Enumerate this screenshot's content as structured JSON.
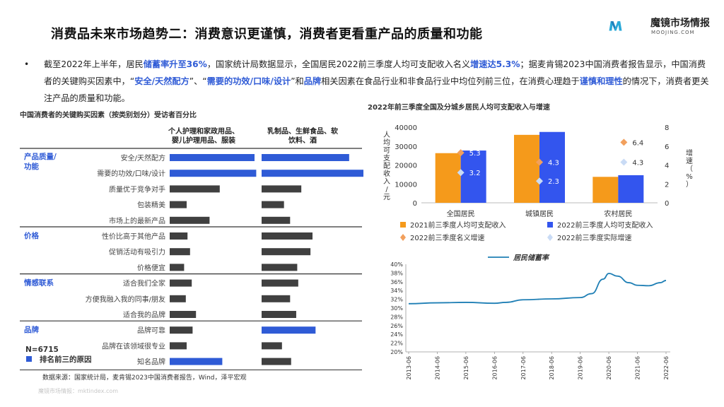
{
  "page": {
    "title": "消费品未来市场趋势二：消费意识更谨慎，消费者更看重产品的质量和功能",
    "logo_name": "魔镜市场情报",
    "logo_sub": "MOOJING.COM",
    "bullet": "•",
    "paragraph": [
      {
        "t": "截至2022年上半年，居民"
      },
      {
        "t": "储蓄率升至36%",
        "h": true
      },
      {
        "t": "，国家统计局数据显示，全国居民2022前三季度人均可支配收入名义"
      },
      {
        "t": "增速达5.3%",
        "h": true
      },
      {
        "t": "；据麦肯锡2023中国消费者报告显示，中国消费者的关键购买因素中，“"
      },
      {
        "t": "安全/天然配方",
        "h": true
      },
      {
        "t": "”、“"
      },
      {
        "t": "需要的功效/口味/设计",
        "h": true
      },
      {
        "t": "”和"
      },
      {
        "t": "品牌",
        "h": true
      },
      {
        "t": "相关因素在食品行业和非食品行业中均位列前三位，在消费心理趋于"
      },
      {
        "t": "谨慎和理性",
        "h": true
      },
      {
        "t": "的情况下，消费者更关注产品的质量和功能。"
      }
    ],
    "footnote": "数据来源：国家统计局，麦肯锡2023中国消费者报告，Wind，泽平宏观",
    "watermark": "魔镜市场情报：mktindex.com"
  },
  "colors": {
    "accent_blue": "#2f5bd6",
    "bar_gray": "#404040",
    "orange": "#f59a1b",
    "blue": "#3355ee",
    "line_teal": "#1f7fb5",
    "diamond_orange": "#f2a05d",
    "diamond_light": "#c9dbf5"
  },
  "factors": {
    "title": "中国消费者的关键购买因素（按类别划分）受访者百分比",
    "col1_header": [
      "个人护理和家政用品、",
      "婴儿护理用品、服装"
    ],
    "col2_header": [
      "乳制品、生鲜食品、软",
      "饮料、酒"
    ],
    "n_label": "N=6715",
    "legend_label": "排名前三的原因",
    "groups": [
      {
        "label": [
          "产品质量/",
          "功能"
        ],
        "rows": [
          0,
          4
        ]
      },
      {
        "label": [
          "价格"
        ],
        "rows": [
          5,
          7
        ]
      },
      {
        "label": [
          "情感联系"
        ],
        "rows": [
          8,
          10
        ]
      },
      {
        "label": [
          "品牌"
        ],
        "rows": [
          11,
          13
        ]
      }
    ],
    "rows": [
      {
        "label": "安全/天然配方",
        "v1": 1.0,
        "t1": true,
        "v2": 0.86,
        "t2": true
      },
      {
        "label": "需要的功效/口味/设计",
        "v1": 1.02,
        "t1": true,
        "v2": 1.0,
        "t2": true
      },
      {
        "label": "质量优于竞争对手",
        "v1": 0.59,
        "t1": false,
        "v2": 0.39,
        "t2": false
      },
      {
        "label": "包装精美",
        "v1": 0.2,
        "t1": false,
        "v2": 0.22,
        "t2": false
      },
      {
        "label": "市场上的最新产品",
        "v1": 0.47,
        "t1": false,
        "v2": 0.28,
        "t2": false
      },
      {
        "label": "性价比高于其他产品",
        "v1": 0.21,
        "t1": false,
        "v2": 0.5,
        "t2": false
      },
      {
        "label": "促销活动有吸引力",
        "v1": 0.24,
        "t1": false,
        "v2": 0.48,
        "t2": false
      },
      {
        "label": "价格便宜",
        "v1": 0.17,
        "t1": false,
        "v2": 0.35,
        "t2": false
      },
      {
        "label": "适合我们全家",
        "v1": 0.26,
        "t1": false,
        "v2": 0.36,
        "t2": false
      },
      {
        "label": "方便我融入我的同事/朋友",
        "v1": 0.19,
        "t1": false,
        "v2": 0.28,
        "t2": false
      },
      {
        "label": "适合我的品牌",
        "v1": 0.31,
        "t1": false,
        "v2": 0.34,
        "t2": false
      },
      {
        "label": "品牌可靠",
        "v1": 0.27,
        "t1": false,
        "v2": 0.53,
        "t2": true
      },
      {
        "label": "品牌在该领域很专业",
        "v1": 0.2,
        "t1": false,
        "v2": 0.2,
        "t2": false
      },
      {
        "label": "知名品牌",
        "v1": 0.62,
        "t1": true,
        "v2": 0.29,
        "t2": false
      }
    ]
  },
  "chart_data": [
    {
      "type": "bar",
      "title": "2022年前三季度全国及分城乡居民人均可支配收入与增速",
      "categories": [
        "全国居民",
        "城镇居民",
        "农村居民"
      ],
      "series": [
        {
          "name": "2021前三季度人均可支配收入",
          "values": [
            26265,
            35946,
            13726
          ],
          "color": "#f59a1b"
        },
        {
          "name": "2022前三季度人均可支配收入",
          "values": [
            27650,
            37482,
            14600
          ],
          "color": "#3355ee"
        }
      ],
      "scatter_series": [
        {
          "name": "2022前三季度名义增速",
          "values": [
            5.3,
            4.3,
            6.4
          ],
          "labels": [
            "5.3",
            "4.3",
            "6.4"
          ],
          "color": "#f2a05d"
        },
        {
          "name": "2022前三季度实际增速",
          "values": [
            3.2,
            2.3,
            4.3
          ],
          "labels": [
            "3.2",
            "2.3",
            "4.3"
          ],
          "color": "#c9dbf5"
        }
      ],
      "ylabel": "人均可支配收入/元",
      "y2label": "增速（%）",
      "ylim": [
        0,
        40000
      ],
      "yticks": [
        "0",
        "10000",
        "20000",
        "30000",
        "40000"
      ],
      "y2lim": [
        0,
        8
      ],
      "y2ticks": [
        "0",
        "2",
        "4",
        "6",
        "8"
      ],
      "legend_placement": "bottom"
    },
    {
      "type": "line",
      "title": "",
      "series": [
        {
          "name": "居民储蓄率",
          "color": "#1f7fb5"
        }
      ],
      "x": [
        "2013-06",
        "2014-06",
        "2015-06",
        "2016-06",
        "2017-06",
        "2018-06",
        "2019-06",
        "2020-06",
        "2021-06",
        "2022-06"
      ],
      "y": [
        31.0,
        31.2,
        31.3,
        31.1,
        31.9,
        32.1,
        32.4,
        37.9,
        35.2,
        36.3
      ],
      "points": [
        [
          0,
          31.0
        ],
        [
          1,
          31.2
        ],
        [
          2,
          31.3
        ],
        [
          3,
          31.1
        ],
        [
          3.4,
          31.3
        ],
        [
          4,
          31.9
        ],
        [
          5,
          32.1
        ],
        [
          6,
          32.4
        ],
        [
          6.4,
          33.3
        ],
        [
          6.8,
          36.6
        ],
        [
          7,
          37.9
        ],
        [
          7.3,
          37.3
        ],
        [
          7.7,
          35.8
        ],
        [
          8,
          35.2
        ],
        [
          8.4,
          35.1
        ],
        [
          8.8,
          35.8
        ],
        [
          9,
          36.3
        ]
      ],
      "ylim": [
        20,
        40
      ],
      "yticks": [
        "20%",
        "22%",
        "24%",
        "26%",
        "28%",
        "30%",
        "32%",
        "34%",
        "36%",
        "38%",
        "40%"
      ],
      "legend_placement": "top-center"
    }
  ]
}
